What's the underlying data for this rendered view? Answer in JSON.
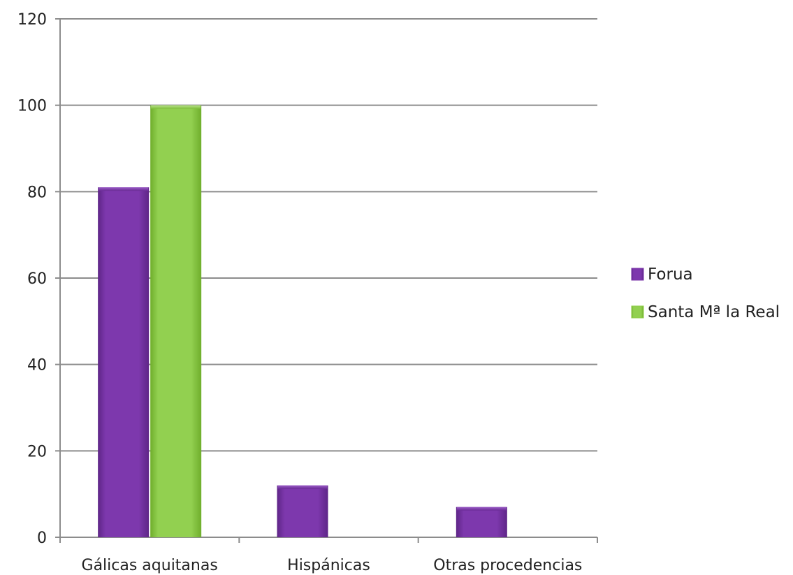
{
  "chart_data": {
    "type": "bar",
    "categories": [
      "Gálicas aquitanas",
      "Hispánicas",
      "Otras procedencias"
    ],
    "series": [
      {
        "name": "Forua",
        "values": [
          81,
          12,
          7
        ],
        "color": "#7a35a8"
      },
      {
        "name": "Santa Mª la Real",
        "values": [
          100,
          0,
          0
        ],
        "color": "#8fcd47"
      }
    ],
    "title": "",
    "xlabel": "",
    "ylabel": "",
    "ylim": [
      0,
      120
    ],
    "yticks": [
      0,
      20,
      40,
      60,
      80,
      100,
      120
    ],
    "grid": true,
    "legend_position": "right"
  }
}
